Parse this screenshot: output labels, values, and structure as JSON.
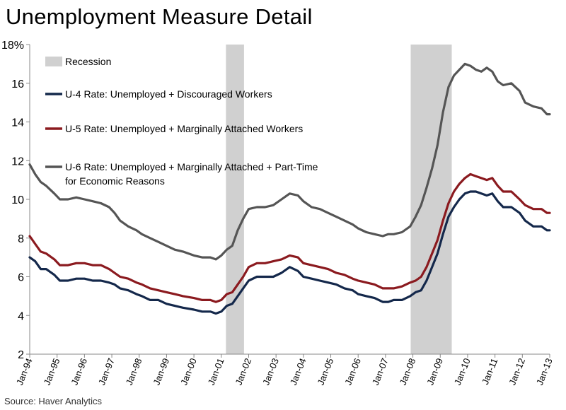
{
  "title": "Unemployment Measure Detail",
  "source": "Source: Haver Analytics",
  "chart_data": {
    "type": "line",
    "title": "Unemployment Measure Detail",
    "xlabel": "",
    "ylabel": "",
    "ylim": [
      2,
      18
    ],
    "y_ticks": [
      2,
      4,
      6,
      8,
      10,
      12,
      14,
      16,
      18
    ],
    "y_tick_labels": [
      "2",
      "4",
      "6",
      "8",
      "10",
      "12",
      "14",
      "16",
      "18%"
    ],
    "xlim": [
      1994.0,
      2013.0
    ],
    "x_tick_labels": [
      "Jan-94",
      "Jan-95",
      "Jan-96",
      "Jan-97",
      "Jan-98",
      "Jan-99",
      "Jan-00",
      "Jan-01",
      "Jan-02",
      "Jan-03",
      "Jan-04",
      "Jan-05",
      "Jan-06",
      "Jan-07",
      "Jan-08",
      "Jan-09",
      "Jan-10",
      "Jan-11",
      "Jan-12",
      "Jan-13"
    ],
    "recessions": [
      {
        "start": 2001.17,
        "end": 2001.83
      },
      {
        "start": 2007.92,
        "end": 2009.42
      }
    ],
    "legend": {
      "recession_label": "Recession",
      "placement": "top-left"
    },
    "series": [
      {
        "name": "U-4 Rate: Unemployed + Discouraged Workers",
        "color": "#14284b",
        "points": [
          [
            1994.0,
            7.0
          ],
          [
            1994.2,
            6.8
          ],
          [
            1994.4,
            6.4
          ],
          [
            1994.6,
            6.4
          ],
          [
            1994.9,
            6.1
          ],
          [
            1995.1,
            5.8
          ],
          [
            1995.4,
            5.8
          ],
          [
            1995.7,
            5.9
          ],
          [
            1996.0,
            5.9
          ],
          [
            1996.3,
            5.8
          ],
          [
            1996.6,
            5.8
          ],
          [
            1996.9,
            5.7
          ],
          [
            1997.1,
            5.6
          ],
          [
            1997.3,
            5.4
          ],
          [
            1997.6,
            5.3
          ],
          [
            1997.9,
            5.1
          ],
          [
            1998.1,
            5.0
          ],
          [
            1998.4,
            4.8
          ],
          [
            1998.7,
            4.8
          ],
          [
            1999.0,
            4.6
          ],
          [
            1999.3,
            4.5
          ],
          [
            1999.6,
            4.4
          ],
          [
            2000.0,
            4.3
          ],
          [
            2000.3,
            4.2
          ],
          [
            2000.6,
            4.2
          ],
          [
            2000.8,
            4.1
          ],
          [
            2001.0,
            4.2
          ],
          [
            2001.2,
            4.5
          ],
          [
            2001.4,
            4.6
          ],
          [
            2001.6,
            5.0
          ],
          [
            2001.8,
            5.4
          ],
          [
            2002.0,
            5.8
          ],
          [
            2002.3,
            6.0
          ],
          [
            2002.6,
            6.0
          ],
          [
            2002.9,
            6.0
          ],
          [
            2003.2,
            6.2
          ],
          [
            2003.5,
            6.5
          ],
          [
            2003.8,
            6.3
          ],
          [
            2004.0,
            6.0
          ],
          [
            2004.3,
            5.9
          ],
          [
            2004.6,
            5.8
          ],
          [
            2004.9,
            5.7
          ],
          [
            2005.2,
            5.6
          ],
          [
            2005.5,
            5.4
          ],
          [
            2005.8,
            5.3
          ],
          [
            2006.0,
            5.1
          ],
          [
            2006.3,
            5.0
          ],
          [
            2006.6,
            4.9
          ],
          [
            2006.9,
            4.7
          ],
          [
            2007.1,
            4.7
          ],
          [
            2007.3,
            4.8
          ],
          [
            2007.6,
            4.8
          ],
          [
            2007.9,
            5.0
          ],
          [
            2008.1,
            5.2
          ],
          [
            2008.3,
            5.3
          ],
          [
            2008.5,
            5.8
          ],
          [
            2008.7,
            6.5
          ],
          [
            2008.9,
            7.2
          ],
          [
            2009.1,
            8.2
          ],
          [
            2009.3,
            9.1
          ],
          [
            2009.5,
            9.6
          ],
          [
            2009.7,
            10.0
          ],
          [
            2009.9,
            10.3
          ],
          [
            2010.1,
            10.4
          ],
          [
            2010.3,
            10.4
          ],
          [
            2010.5,
            10.3
          ],
          [
            2010.7,
            10.2
          ],
          [
            2010.9,
            10.3
          ],
          [
            2011.1,
            9.9
          ],
          [
            2011.3,
            9.6
          ],
          [
            2011.6,
            9.6
          ],
          [
            2011.9,
            9.3
          ],
          [
            2012.1,
            8.9
          ],
          [
            2012.4,
            8.6
          ],
          [
            2012.7,
            8.6
          ],
          [
            2012.9,
            8.4
          ],
          [
            2013.0,
            8.4
          ]
        ]
      },
      {
        "name": "U-5 Rate: Unemployed + Marginally Attached Workers",
        "color": "#8b1a1f",
        "points": [
          [
            1994.0,
            8.1
          ],
          [
            1994.2,
            7.7
          ],
          [
            1994.4,
            7.3
          ],
          [
            1994.6,
            7.2
          ],
          [
            1994.9,
            6.9
          ],
          [
            1995.1,
            6.6
          ],
          [
            1995.4,
            6.6
          ],
          [
            1995.7,
            6.7
          ],
          [
            1996.0,
            6.7
          ],
          [
            1996.3,
            6.6
          ],
          [
            1996.6,
            6.6
          ],
          [
            1996.9,
            6.4
          ],
          [
            1997.1,
            6.2
          ],
          [
            1997.3,
            6.0
          ],
          [
            1997.6,
            5.9
          ],
          [
            1997.9,
            5.7
          ],
          [
            1998.1,
            5.6
          ],
          [
            1998.4,
            5.4
          ],
          [
            1998.7,
            5.3
          ],
          [
            1999.0,
            5.2
          ],
          [
            1999.3,
            5.1
          ],
          [
            1999.6,
            5.0
          ],
          [
            2000.0,
            4.9
          ],
          [
            2000.3,
            4.8
          ],
          [
            2000.6,
            4.8
          ],
          [
            2000.8,
            4.7
          ],
          [
            2001.0,
            4.8
          ],
          [
            2001.2,
            5.1
          ],
          [
            2001.4,
            5.2
          ],
          [
            2001.6,
            5.6
          ],
          [
            2001.8,
            6.0
          ],
          [
            2002.0,
            6.5
          ],
          [
            2002.3,
            6.7
          ],
          [
            2002.6,
            6.7
          ],
          [
            2002.9,
            6.8
          ],
          [
            2003.2,
            6.9
          ],
          [
            2003.5,
            7.1
          ],
          [
            2003.8,
            7.0
          ],
          [
            2004.0,
            6.7
          ],
          [
            2004.3,
            6.6
          ],
          [
            2004.6,
            6.5
          ],
          [
            2004.9,
            6.4
          ],
          [
            2005.2,
            6.2
          ],
          [
            2005.5,
            6.1
          ],
          [
            2005.8,
            5.9
          ],
          [
            2006.0,
            5.8
          ],
          [
            2006.3,
            5.7
          ],
          [
            2006.6,
            5.6
          ],
          [
            2006.9,
            5.4
          ],
          [
            2007.1,
            5.4
          ],
          [
            2007.3,
            5.4
          ],
          [
            2007.6,
            5.5
          ],
          [
            2007.9,
            5.7
          ],
          [
            2008.1,
            5.8
          ],
          [
            2008.3,
            6.0
          ],
          [
            2008.5,
            6.5
          ],
          [
            2008.7,
            7.2
          ],
          [
            2008.9,
            7.9
          ],
          [
            2009.1,
            8.9
          ],
          [
            2009.3,
            9.8
          ],
          [
            2009.5,
            10.4
          ],
          [
            2009.7,
            10.8
          ],
          [
            2009.9,
            11.1
          ],
          [
            2010.1,
            11.3
          ],
          [
            2010.3,
            11.2
          ],
          [
            2010.5,
            11.1
          ],
          [
            2010.7,
            11.0
          ],
          [
            2010.9,
            11.1
          ],
          [
            2011.1,
            10.7
          ],
          [
            2011.3,
            10.4
          ],
          [
            2011.6,
            10.4
          ],
          [
            2011.9,
            10.0
          ],
          [
            2012.1,
            9.7
          ],
          [
            2012.4,
            9.5
          ],
          [
            2012.7,
            9.5
          ],
          [
            2012.9,
            9.3
          ],
          [
            2013.0,
            9.3
          ]
        ]
      },
      {
        "name": "U-6 Rate: Unemployed + Marginally Attached + Part-Time",
        "name_line2": "for Economic Reasons",
        "color": "#555555",
        "points": [
          [
            1994.0,
            11.8
          ],
          [
            1994.2,
            11.3
          ],
          [
            1994.4,
            10.9
          ],
          [
            1994.6,
            10.7
          ],
          [
            1994.9,
            10.3
          ],
          [
            1995.1,
            10.0
          ],
          [
            1995.4,
            10.0
          ],
          [
            1995.7,
            10.1
          ],
          [
            1996.0,
            10.0
          ],
          [
            1996.3,
            9.9
          ],
          [
            1996.6,
            9.8
          ],
          [
            1996.9,
            9.6
          ],
          [
            1997.1,
            9.3
          ],
          [
            1997.3,
            8.9
          ],
          [
            1997.6,
            8.6
          ],
          [
            1997.9,
            8.4
          ],
          [
            1998.1,
            8.2
          ],
          [
            1998.4,
            8.0
          ],
          [
            1998.7,
            7.8
          ],
          [
            1999.0,
            7.6
          ],
          [
            1999.3,
            7.4
          ],
          [
            1999.6,
            7.3
          ],
          [
            2000.0,
            7.1
          ],
          [
            2000.3,
            7.0
          ],
          [
            2000.6,
            7.0
          ],
          [
            2000.8,
            6.9
          ],
          [
            2001.0,
            7.1
          ],
          [
            2001.2,
            7.4
          ],
          [
            2001.4,
            7.6
          ],
          [
            2001.6,
            8.4
          ],
          [
            2001.8,
            9.0
          ],
          [
            2002.0,
            9.5
          ],
          [
            2002.3,
            9.6
          ],
          [
            2002.6,
            9.6
          ],
          [
            2002.9,
            9.7
          ],
          [
            2003.2,
            10.0
          ],
          [
            2003.5,
            10.3
          ],
          [
            2003.8,
            10.2
          ],
          [
            2004.0,
            9.9
          ],
          [
            2004.3,
            9.6
          ],
          [
            2004.6,
            9.5
          ],
          [
            2004.9,
            9.3
          ],
          [
            2005.2,
            9.1
          ],
          [
            2005.5,
            8.9
          ],
          [
            2005.8,
            8.7
          ],
          [
            2006.0,
            8.5
          ],
          [
            2006.3,
            8.3
          ],
          [
            2006.6,
            8.2
          ],
          [
            2006.9,
            8.1
          ],
          [
            2007.1,
            8.2
          ],
          [
            2007.3,
            8.2
          ],
          [
            2007.6,
            8.3
          ],
          [
            2007.9,
            8.6
          ],
          [
            2008.1,
            9.1
          ],
          [
            2008.3,
            9.7
          ],
          [
            2008.5,
            10.6
          ],
          [
            2008.7,
            11.6
          ],
          [
            2008.9,
            12.8
          ],
          [
            2009.1,
            14.5
          ],
          [
            2009.3,
            15.8
          ],
          [
            2009.5,
            16.4
          ],
          [
            2009.7,
            16.7
          ],
          [
            2009.9,
            17.0
          ],
          [
            2010.1,
            16.9
          ],
          [
            2010.3,
            16.7
          ],
          [
            2010.5,
            16.6
          ],
          [
            2010.7,
            16.8
          ],
          [
            2010.9,
            16.6
          ],
          [
            2011.1,
            16.1
          ],
          [
            2011.3,
            15.9
          ],
          [
            2011.6,
            16.0
          ],
          [
            2011.9,
            15.6
          ],
          [
            2012.1,
            15.0
          ],
          [
            2012.4,
            14.8
          ],
          [
            2012.7,
            14.7
          ],
          [
            2012.9,
            14.4
          ],
          [
            2013.0,
            14.4
          ]
        ]
      }
    ]
  }
}
